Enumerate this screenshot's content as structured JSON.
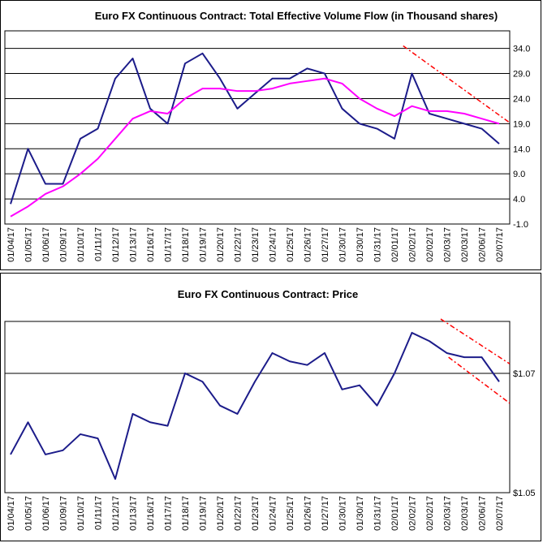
{
  "chart_data": [
    {
      "type": "line",
      "title": "Euro FX Continuous Contract: Total Effective Volume Flow (in Thousand shares)",
      "categories": [
        "01/04/17",
        "01/05/17",
        "01/06/17",
        "01/09/17",
        "01/10/17",
        "01/11/17",
        "01/12/17",
        "01/13/17",
        "01/16/17",
        "01/17/17",
        "01/18/17",
        "01/19/17",
        "01/20/17",
        "01/22/17",
        "01/23/17",
        "01/24/17",
        "01/25/17",
        "01/26/17",
        "01/27/17",
        "01/30/17",
        "01/30/17",
        "01/31/17",
        "02/01/17",
        "02/02/17",
        "02/02/17",
        "02/03/17",
        "02/03/17",
        "02/06/17",
        "02/07/17"
      ],
      "series": [
        {
          "color": "#1c1c8a",
          "values": [
            3,
            14,
            7,
            7,
            16,
            18,
            28,
            32,
            22,
            19,
            31,
            33,
            28,
            22,
            25,
            28,
            28,
            30,
            29,
            22,
            19,
            18,
            16,
            29,
            21,
            20,
            19,
            18,
            15
          ]
        },
        {
          "color": "#ff00ff",
          "values": [
            0.5,
            2.5,
            5,
            6.5,
            9,
            12,
            16,
            20,
            21.5,
            21,
            24,
            26,
            26,
            25.5,
            25.5,
            26,
            27,
            27.5,
            28,
            27,
            24,
            22,
            20.5,
            22.5,
            21.5,
            21.5,
            21,
            20,
            19
          ]
        }
      ],
      "trend_lines": [
        {
          "color": "#ff0000",
          "x": [
            22.5,
            28.6
          ],
          "values": [
            34.5,
            19.2
          ]
        }
      ],
      "ylim": [
        -1,
        37.5
      ],
      "yticks": [
        {
          "value": -1,
          "label": "-1.0"
        },
        {
          "value": 4,
          "label": "4.0"
        },
        {
          "value": 9,
          "label": "9.0"
        },
        {
          "value": 14,
          "label": "14.0"
        },
        {
          "value": 19,
          "label": "19.0"
        },
        {
          "value": 24,
          "label": "24.0"
        },
        {
          "value": 29,
          "label": "29.0"
        },
        {
          "value": 34,
          "label": "34.0"
        }
      ],
      "grid": true
    },
    {
      "type": "line",
      "title": "Euro FX Continuous Contract: Price",
      "categories": [
        "01/04/17",
        "01/05/17",
        "01/06/17",
        "01/09/17",
        "01/10/17",
        "01/11/17",
        "01/12/17",
        "01/13/17",
        "01/16/17",
        "01/17/17",
        "01/18/17",
        "01/19/17",
        "01/20/17",
        "01/22/17",
        "01/23/17",
        "01/24/17",
        "01/25/17",
        "01/26/17",
        "01/27/17",
        "01/30/17",
        "01/30/17",
        "01/31/17",
        "02/01/17",
        "02/02/17",
        "02/02/17",
        "02/03/17",
        "02/03/17",
        "02/06/17",
        "02/07/17"
      ],
      "series": [
        {
          "color": "#1c1c8a",
          "values": [
            1.0564,
            1.0618,
            1.0564,
            1.0571,
            1.0598,
            1.0591,
            1.0523,
            1.0632,
            1.0618,
            1.0612,
            1.07,
            1.0686,
            1.0646,
            1.0632,
            1.0686,
            1.0734,
            1.072,
            1.0714,
            1.0734,
            1.0673,
            1.068,
            1.0646,
            1.07,
            1.0768,
            1.0754,
            1.0734,
            1.0727,
            1.0727,
            1.0686
          ]
        }
      ],
      "trend_lines": [
        {
          "color": "#ff0000",
          "x": [
            24.65,
            28.6
          ],
          "values": [
            1.0791,
            1.0716
          ]
        },
        {
          "color": "#ff0000",
          "x": [
            25.1,
            28.6
          ],
          "values": [
            1.0727,
            1.065
          ]
        }
      ],
      "ylim": [
        1.05,
        1.0787
      ],
      "yticks": [
        {
          "value": 1.05,
          "label": "$1.05"
        },
        {
          "value": 1.07,
          "label": "$1.07"
        }
      ],
      "grid": true
    }
  ]
}
